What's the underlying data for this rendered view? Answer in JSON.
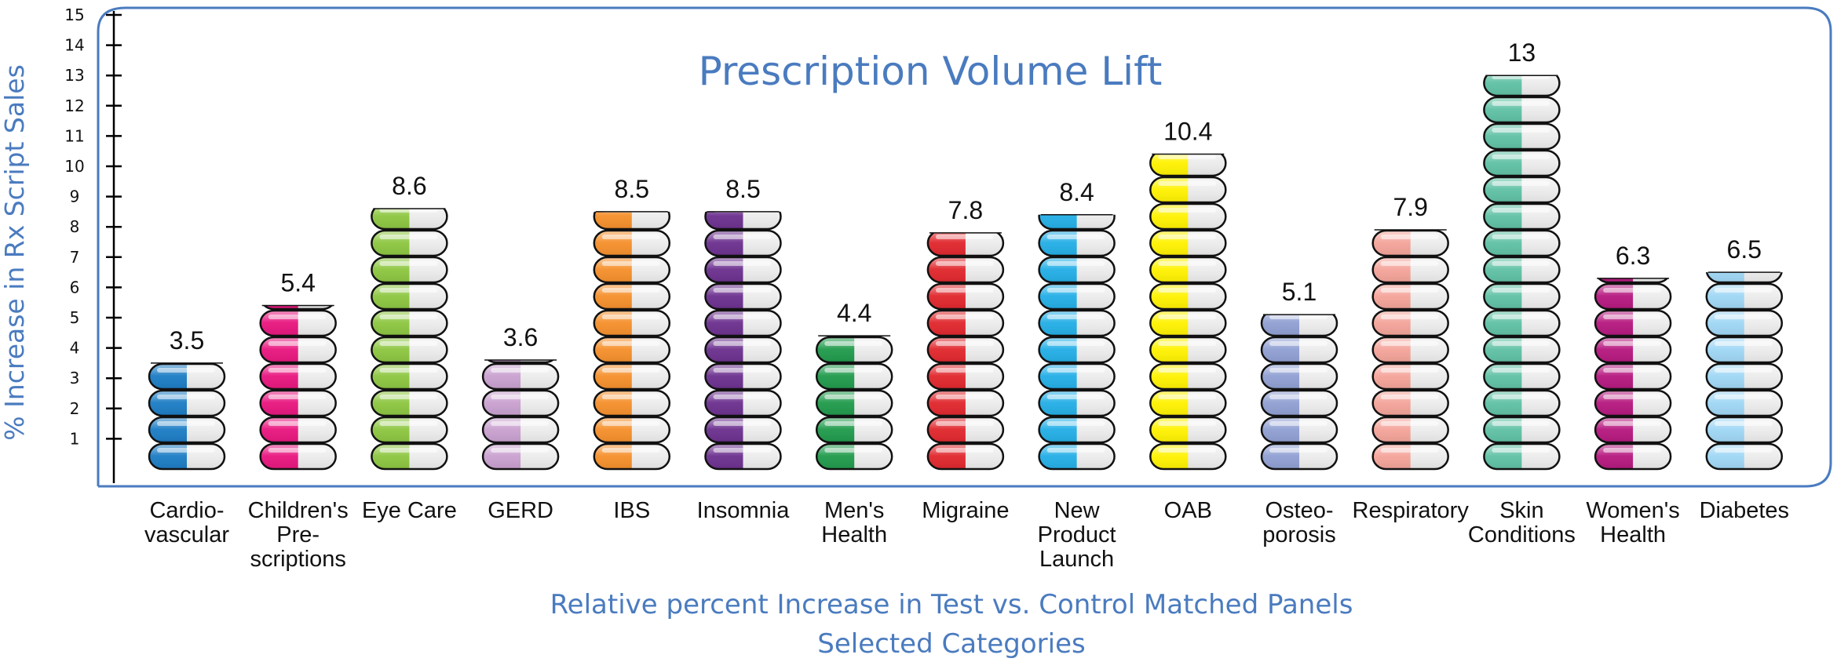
{
  "chart_data": {
    "type": "bar",
    "title": "Prescription Volume Lift",
    "ylabel": "% Increase in Rx Script Sales",
    "xlabel_lines": [
      "Relative percent Increase in Test vs. Control Matched Panels",
      "Selected Categories"
    ],
    "ylim": [
      0,
      15
    ],
    "yticks": [
      1,
      2,
      3,
      4,
      5,
      6,
      7,
      8,
      9,
      10,
      11,
      12,
      13,
      14,
      15
    ],
    "grid": false,
    "categories": [
      [
        "Cardio-",
        "vascular"
      ],
      [
        "Children's",
        "Pre-",
        "scriptions"
      ],
      [
        "Eye Care"
      ],
      [
        "GERD"
      ],
      [
        "IBS"
      ],
      [
        "Insomnia"
      ],
      [
        "Men's",
        "Health"
      ],
      [
        "Migraine"
      ],
      [
        "New",
        "Product",
        "Launch"
      ],
      [
        "OAB"
      ],
      [
        "Osteo-",
        "porosis"
      ],
      [
        "Respiratory"
      ],
      [
        "Skin",
        "Conditions"
      ],
      [
        "Women's",
        "Health"
      ],
      [
        "Diabetes"
      ]
    ],
    "values": [
      3.5,
      5.4,
      8.6,
      3.6,
      8.5,
      8.5,
      4.4,
      7.8,
      8.4,
      10.4,
      5.1,
      7.9,
      13,
      6.3,
      6.5
    ],
    "value_labels": [
      "3.5",
      "5.4",
      "8.6",
      "3.6",
      "8.5",
      "8.5",
      "4.4",
      "7.8",
      "8.4",
      "10.4",
      "5.1",
      "7.9",
      "13",
      "6.3",
      "6.5"
    ],
    "colors": [
      "#1b7cc4",
      "#e8157e",
      "#8cc63f",
      "#c9a0cf",
      "#f58f2a",
      "#6b2f8e",
      "#1f9a4b",
      "#e0262c",
      "#22aee6",
      "#fff200",
      "#8f9fd2",
      "#f4a399",
      "#5fc1a4",
      "#b5177e",
      "#9fd7f5"
    ],
    "frame_color": "#4a7bbf",
    "text_accent": "#4a7bbf"
  }
}
